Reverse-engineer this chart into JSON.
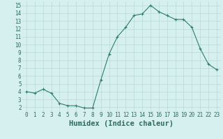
{
  "x": [
    0,
    1,
    2,
    3,
    4,
    5,
    6,
    7,
    8,
    9,
    10,
    11,
    12,
    13,
    14,
    15,
    16,
    17,
    18,
    19,
    20,
    21,
    22,
    23
  ],
  "y": [
    4.0,
    3.8,
    4.3,
    3.8,
    2.5,
    2.2,
    2.2,
    1.9,
    1.9,
    5.5,
    8.8,
    11.0,
    12.2,
    13.7,
    13.9,
    15.0,
    14.2,
    13.7,
    13.2,
    13.2,
    12.2,
    9.5,
    7.5,
    6.8
  ],
  "line_color": "#2e7d6e",
  "marker": "+",
  "marker_size": 3.5,
  "bg_color": "#d6f0ef",
  "grid_color": "#b8d8d4",
  "xlabel": "Humidex (Indice chaleur)",
  "xlim": [
    -0.5,
    23.5
  ],
  "ylim": [
    1.5,
    15.5
  ],
  "yticks": [
    2,
    3,
    4,
    5,
    6,
    7,
    8,
    9,
    10,
    11,
    12,
    13,
    14,
    15
  ],
  "xticks": [
    0,
    1,
    2,
    3,
    4,
    5,
    6,
    7,
    8,
    9,
    10,
    11,
    12,
    13,
    14,
    15,
    16,
    17,
    18,
    19,
    20,
    21,
    22,
    23
  ],
  "tick_label_fontsize": 5.5,
  "xlabel_fontsize": 7.5,
  "axis_label_color": "#2e6b5e",
  "tick_color": "#2e6b5e",
  "lw": 0.8
}
